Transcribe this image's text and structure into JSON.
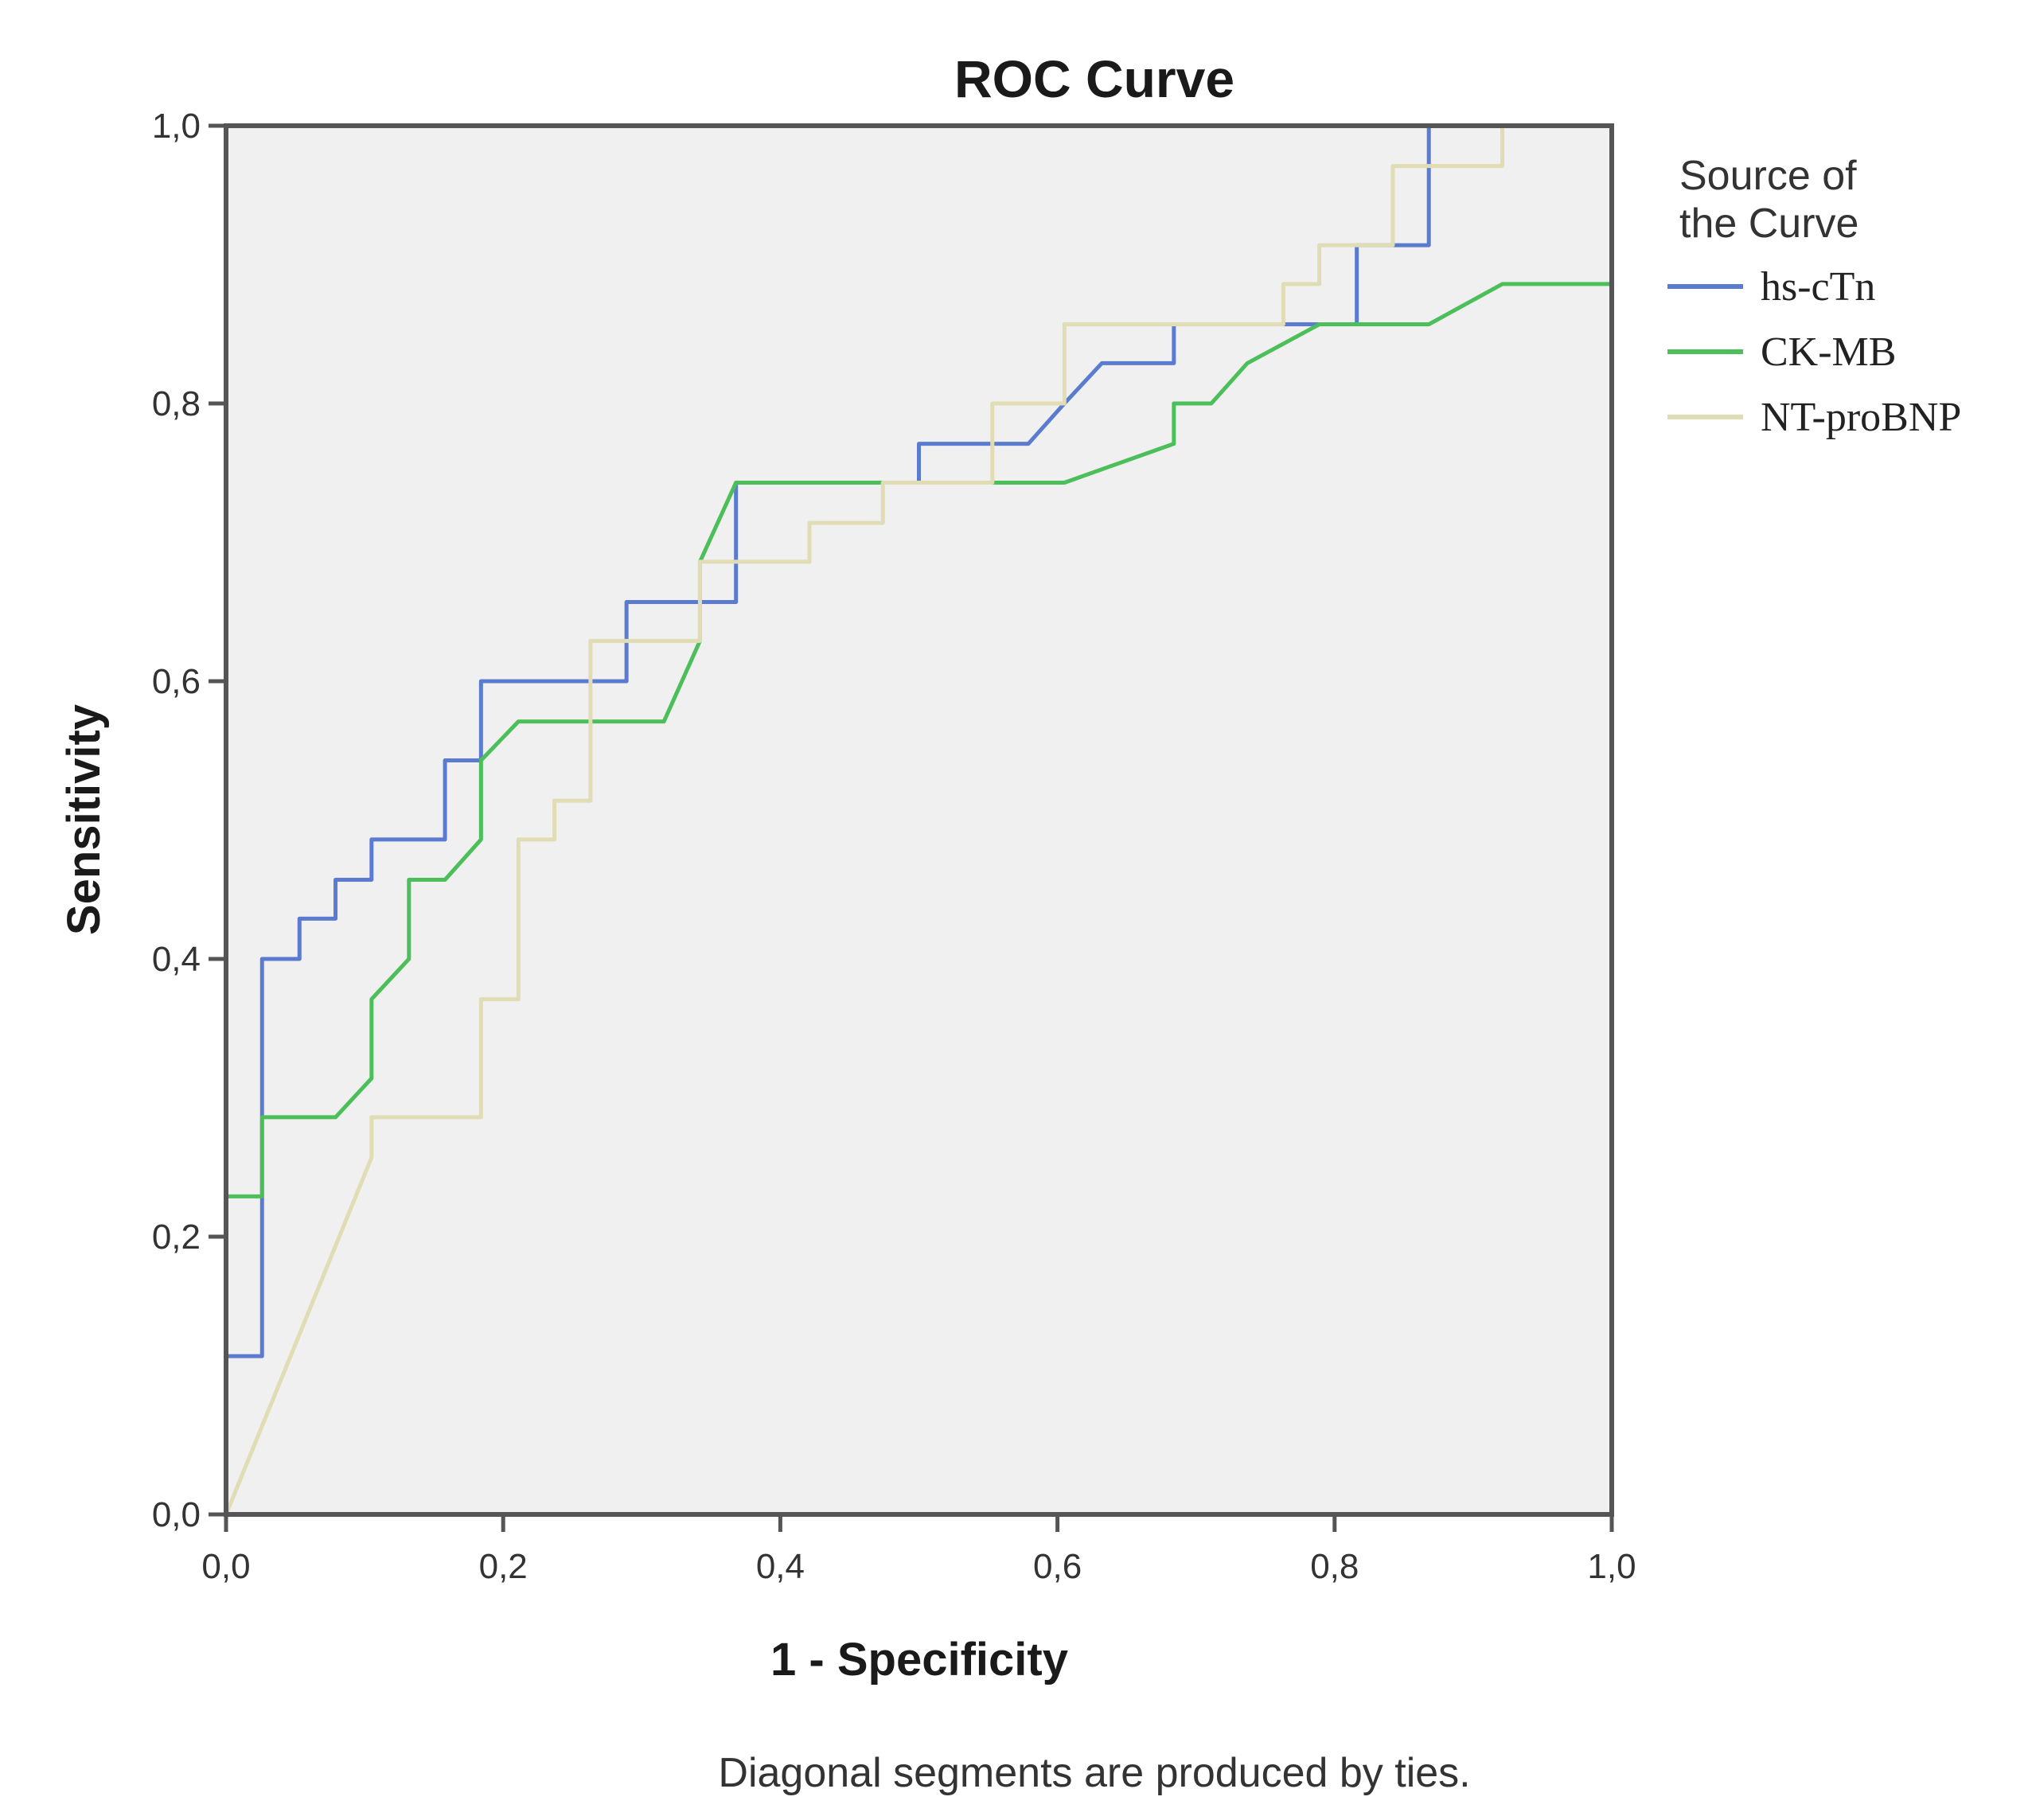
{
  "chart_data": {
    "type": "line",
    "title": "ROC Curve",
    "xlabel": "1 - Specificity",
    "ylabel": "Sensitivity",
    "xlim": [
      0,
      1
    ],
    "ylim": [
      0,
      1
    ],
    "x_ticks": [
      "0,0",
      "0,2",
      "0,4",
      "0,6",
      "0,8",
      "1,0"
    ],
    "y_ticks": [
      "0,0",
      "0,2",
      "0,4",
      "0,6",
      "0,8",
      "1,0"
    ],
    "grid": false,
    "plot_background": "#f0f0f0",
    "legend": {
      "title_lines": [
        "Source of",
        "the Curve"
      ],
      "placement": "right"
    },
    "series": [
      {
        "name": "hs-cTn",
        "color": "#5b7bd0",
        "points": [
          [
            0,
            0
          ],
          [
            0,
            0.114
          ],
          [
            0.026,
            0.114
          ],
          [
            0.026,
            0.4
          ],
          [
            0.053,
            0.4
          ],
          [
            0.053,
            0.429
          ],
          [
            0.079,
            0.429
          ],
          [
            0.079,
            0.457
          ],
          [
            0.105,
            0.457
          ],
          [
            0.105,
            0.486
          ],
          [
            0.158,
            0.486
          ],
          [
            0.158,
            0.543
          ],
          [
            0.184,
            0.543
          ],
          [
            0.184,
            0.6
          ],
          [
            0.289,
            0.6
          ],
          [
            0.289,
            0.657
          ],
          [
            0.368,
            0.657
          ],
          [
            0.368,
            0.743
          ],
          [
            0.5,
            0.743
          ],
          [
            0.5,
            0.771
          ],
          [
            0.579,
            0.771
          ],
          [
            0.605,
            0.8
          ],
          [
            0.632,
            0.829
          ],
          [
            0.684,
            0.829
          ],
          [
            0.684,
            0.857
          ],
          [
            0.816,
            0.857
          ],
          [
            0.816,
            0.914
          ],
          [
            0.868,
            0.914
          ],
          [
            0.868,
            1.0
          ],
          [
            1.0,
            1.0
          ]
        ]
      },
      {
        "name": "CK-MB",
        "color": "#4cbf5a",
        "points": [
          [
            0,
            0
          ],
          [
            0,
            0.229
          ],
          [
            0.026,
            0.229
          ],
          [
            0.026,
            0.286
          ],
          [
            0.079,
            0.286
          ],
          [
            0.105,
            0.314
          ],
          [
            0.105,
            0.371
          ],
          [
            0.132,
            0.4
          ],
          [
            0.132,
            0.457
          ],
          [
            0.158,
            0.457
          ],
          [
            0.184,
            0.486
          ],
          [
            0.184,
            0.543
          ],
          [
            0.211,
            0.571
          ],
          [
            0.316,
            0.571
          ],
          [
            0.342,
            0.629
          ],
          [
            0.342,
            0.686
          ],
          [
            0.368,
            0.743
          ],
          [
            0.605,
            0.743
          ],
          [
            0.684,
            0.771
          ],
          [
            0.684,
            0.8
          ],
          [
            0.711,
            0.8
          ],
          [
            0.737,
            0.829
          ],
          [
            0.789,
            0.857
          ],
          [
            0.868,
            0.857
          ],
          [
            0.921,
            0.886
          ],
          [
            1.0,
            0.886
          ],
          [
            1.0,
            1.0
          ]
        ]
      },
      {
        "name": "NT-proBNP",
        "color": "#e0dcb4",
        "points": [
          [
            0,
            0
          ],
          [
            0.105,
            0.257
          ],
          [
            0.105,
            0.286
          ],
          [
            0.184,
            0.286
          ],
          [
            0.184,
            0.371
          ],
          [
            0.211,
            0.371
          ],
          [
            0.211,
            0.486
          ],
          [
            0.237,
            0.486
          ],
          [
            0.237,
            0.514
          ],
          [
            0.263,
            0.514
          ],
          [
            0.263,
            0.629
          ],
          [
            0.342,
            0.629
          ],
          [
            0.342,
            0.686
          ],
          [
            0.421,
            0.686
          ],
          [
            0.421,
            0.714
          ],
          [
            0.474,
            0.714
          ],
          [
            0.474,
            0.743
          ],
          [
            0.553,
            0.743
          ],
          [
            0.553,
            0.8
          ],
          [
            0.605,
            0.8
          ],
          [
            0.605,
            0.857
          ],
          [
            0.763,
            0.857
          ],
          [
            0.763,
            0.886
          ],
          [
            0.789,
            0.886
          ],
          [
            0.789,
            0.914
          ],
          [
            0.842,
            0.914
          ],
          [
            0.842,
            0.971
          ],
          [
            0.921,
            0.971
          ],
          [
            0.921,
            1.0
          ],
          [
            1.0,
            1.0
          ]
        ]
      }
    ],
    "footnote": "Diagonal segments are produced by ties."
  }
}
